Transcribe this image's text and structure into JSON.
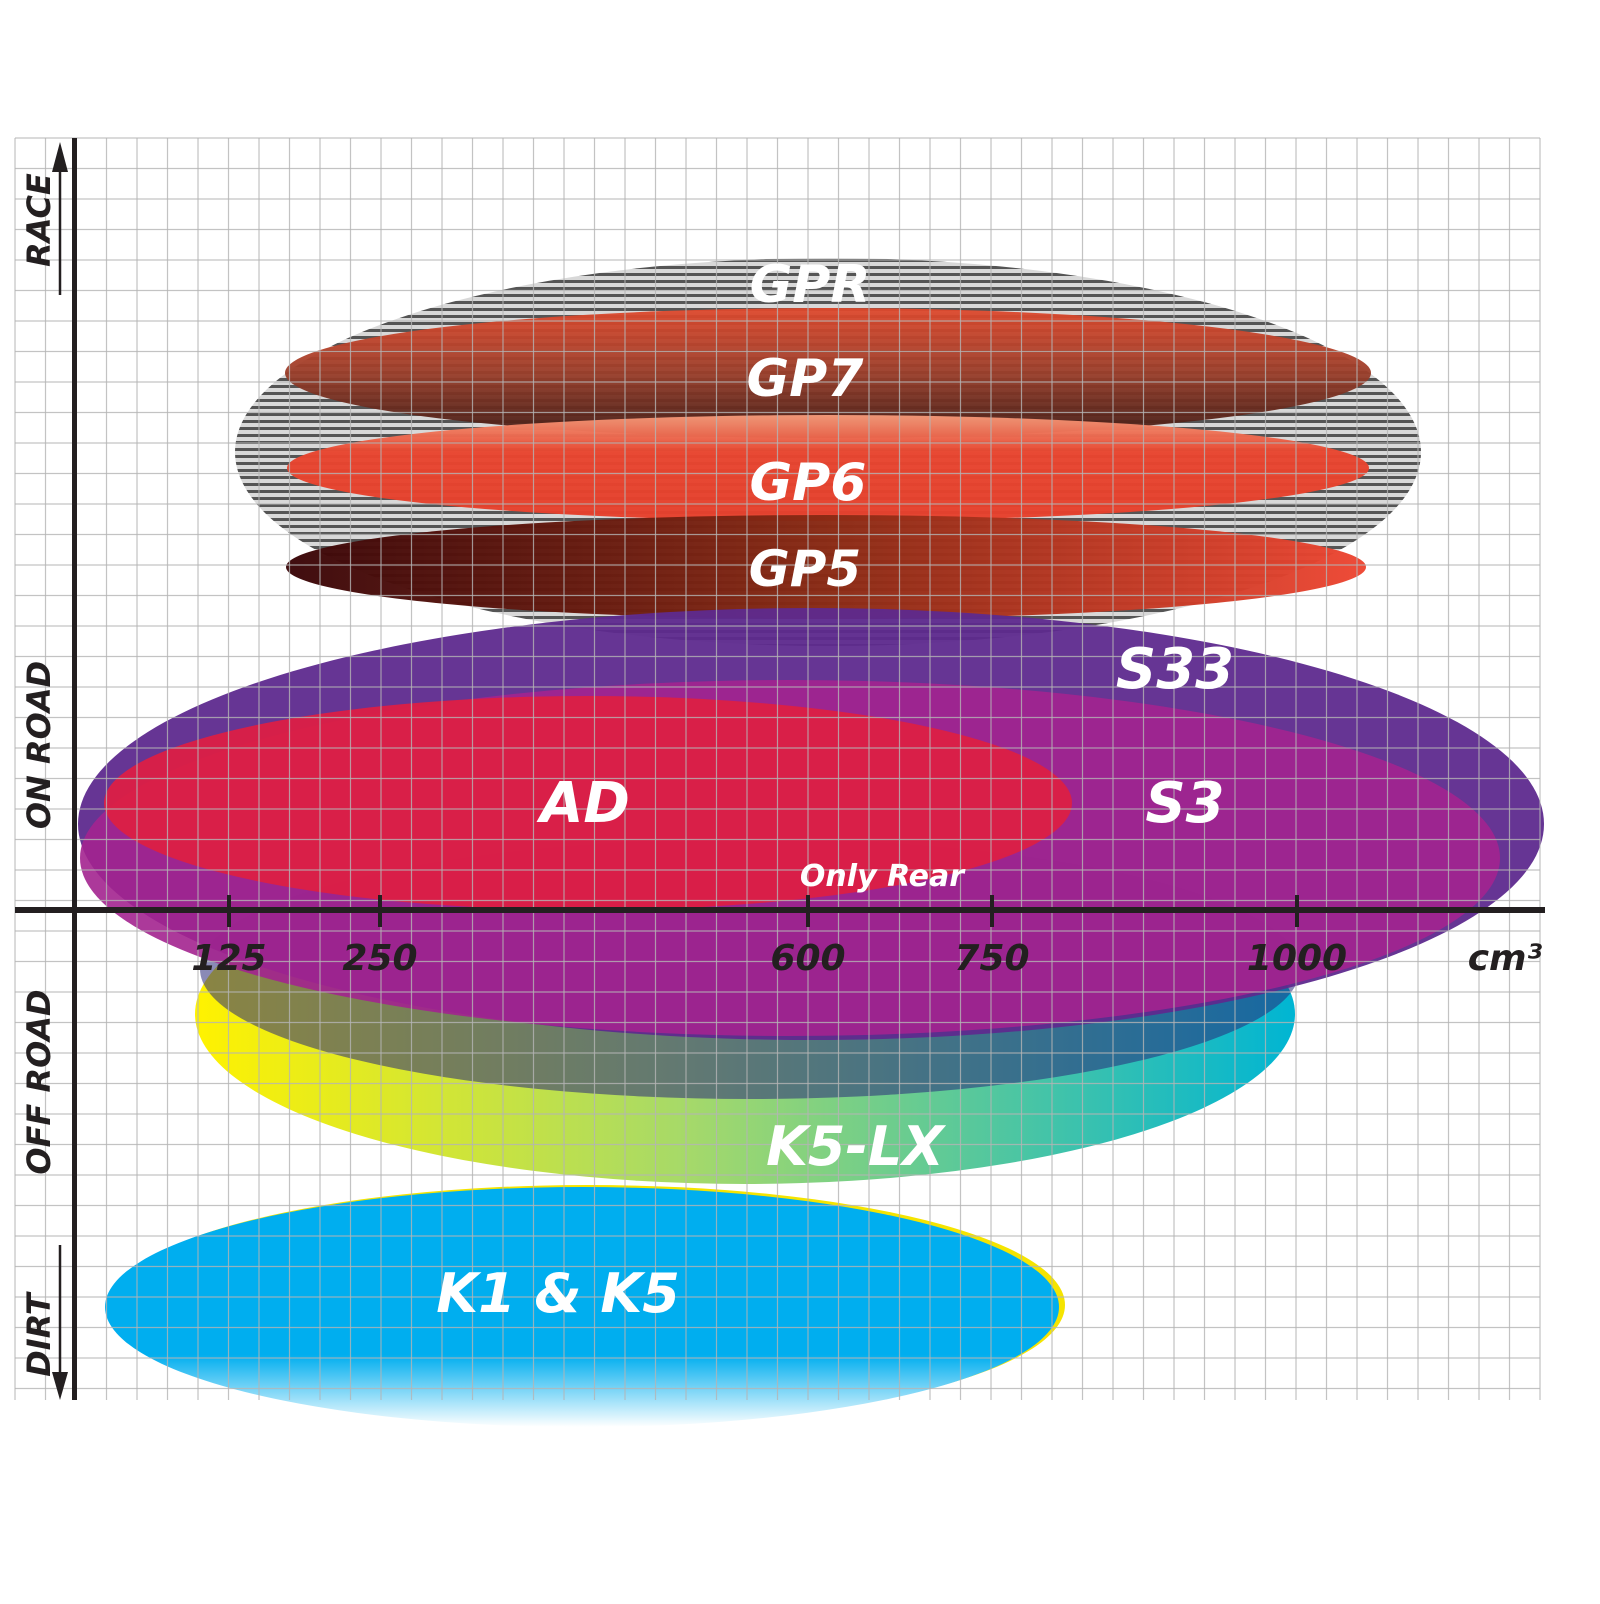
{
  "chart_data": {
    "type": "area",
    "title": "",
    "xlabel": "cm³",
    "x_ticks": [
      125,
      250,
      600,
      750,
      1000
    ],
    "x_tick_labels": [
      "125",
      "250",
      "600",
      "750",
      "1000"
    ],
    "y_categories": [
      "RACE",
      "ON ROAD",
      "OFF ROAD",
      "DIRT"
    ],
    "grid": true,
    "series": [
      {
        "name": "GPR",
        "color": "#9a9a9a"
      },
      {
        "name": "GP7",
        "color": "#b9472e"
      },
      {
        "name": "GP6",
        "color": "#e8452f"
      },
      {
        "name": "GP5",
        "color": "#7a1a10"
      },
      {
        "name": "S33",
        "color": "#5e2a8e"
      },
      {
        "name": "S3",
        "color": "#a3238f"
      },
      {
        "name": "AD",
        "color": "#dc1f45"
      },
      {
        "name": "K5-LX",
        "color": "#00b5cc"
      },
      {
        "name": "K1 & K5",
        "color": "#00aeef"
      }
    ],
    "annotations": [
      "Only Rear"
    ]
  }
}
